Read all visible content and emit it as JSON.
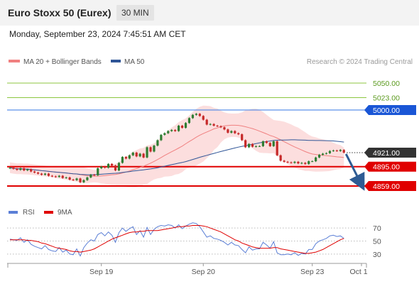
{
  "header": {
    "title": "Euro Stoxx 50 (Eurex)",
    "timeframe": "30 MIN"
  },
  "timestamp": "Monday, September 23, 2024 7:45:51 AM CET",
  "credit": "Research © 2024 Trading Central",
  "colors": {
    "ma20": "#f08080",
    "ma50": "#2f5597",
    "bollinger_fill": "#fbd3d3",
    "resistance": "#4a86e8",
    "support": "#e00000",
    "target_green": "#8cc63f",
    "arrow": "#2e5c94",
    "rsi": "#5b7fd6",
    "rsi_ma": "#e00000"
  },
  "chart_data": [
    {
      "type": "candlestick",
      "legend": [
        "MA 20 + Bollinger Bands",
        "MA 50"
      ],
      "ylim": [
        4838,
        5075
      ],
      "x_tick_labels": [
        "Sep 19",
        "Sep 20",
        "Sep 23",
        "Oct 1"
      ],
      "x_tick_bar_index": [
        26,
        55,
        86,
        100
      ],
      "levels": [
        {
          "label": "5050.00",
          "value": 5050,
          "style": "target"
        },
        {
          "label": "5023.00",
          "value": 5023,
          "style": "target"
        },
        {
          "label": "5000.00",
          "value": 5000,
          "style": "resistance"
        },
        {
          "label": "4921.00",
          "value": 4921,
          "style": "current"
        },
        {
          "label": "4895.00",
          "value": 4895,
          "style": "support"
        },
        {
          "label": "4859.00",
          "value": 4859,
          "style": "support"
        }
      ],
      "closes": [
        4893,
        4891,
        4889,
        4892,
        4888,
        4890,
        4886,
        4884,
        4882,
        4880,
        4882,
        4878,
        4877,
        4876,
        4878,
        4874,
        4875,
        4871,
        4870,
        4873,
        4866,
        4870,
        4875,
        4880,
        4879,
        4892,
        4895,
        4893,
        4900,
        4897,
        4888,
        4902,
        4913,
        4910,
        4916,
        4921,
        4914,
        4919,
        4912,
        4931,
        4923,
        4934,
        4944,
        4954,
        4957,
        4961,
        4963,
        4961,
        4971,
        4967,
        4976,
        4985,
        4991,
        4993,
        4989,
        4982,
        4973,
        4974,
        4971,
        4970,
        4968,
        4964,
        4958,
        4961,
        4957,
        4955,
        4944,
        4931,
        4937,
        4932,
        4933,
        4933,
        4942,
        4939,
        4933,
        4942,
        4916,
        4906,
        4904,
        4903,
        4902,
        4904,
        4901,
        4902,
        4900,
        4905,
        4905,
        4912,
        4917,
        4919,
        4920,
        4924,
        4925,
        4924,
        4926,
        4921
      ]
    },
    {
      "type": "line",
      "legend": [
        "RSI",
        "9MA"
      ],
      "ylim": [
        20,
        80
      ],
      "y_ticks": [
        70,
        50,
        30
      ],
      "series": [
        {
          "name": "RSI",
          "values": [
            53,
            52,
            51,
            55,
            48,
            52,
            45,
            42,
            40,
            38,
            43,
            37,
            35,
            34,
            40,
            33,
            36,
            30,
            29,
            38,
            27,
            40,
            47,
            52,
            50,
            60,
            63,
            58,
            64,
            59,
            48,
            63,
            70,
            65,
            69,
            72,
            60,
            66,
            56,
            71,
            60,
            68,
            72,
            74,
            73,
            75,
            74,
            70,
            75,
            69,
            73,
            76,
            78,
            77,
            72,
            64,
            56,
            58,
            54,
            53,
            51,
            48,
            44,
            48,
            44,
            43,
            37,
            32,
            41,
            36,
            38,
            38,
            48,
            44,
            39,
            49,
            32,
            29,
            29,
            30,
            29,
            32,
            28,
            31,
            30,
            37,
            37,
            46,
            50,
            52,
            54,
            58,
            59,
            57,
            58,
            54
          ]
        },
        {
          "name": "9MA",
          "values": [
            52,
            52,
            52,
            52,
            52,
            51,
            51,
            50,
            49,
            47,
            46,
            44,
            42,
            40,
            39,
            38,
            37,
            35,
            34,
            34,
            33,
            34,
            35,
            36,
            38,
            41,
            44,
            47,
            50,
            53,
            55,
            57,
            59,
            61,
            63,
            64,
            64,
            65,
            65,
            66,
            66,
            66,
            66,
            67,
            68,
            69,
            70,
            71,
            72,
            72,
            73,
            73,
            74,
            74,
            74,
            73,
            72,
            70,
            68,
            66,
            64,
            61,
            58,
            55,
            52,
            50,
            47,
            45,
            43,
            41,
            40,
            39,
            39,
            39,
            39,
            40,
            40,
            38,
            37,
            36,
            35,
            34,
            33,
            32,
            31,
            31,
            32,
            33,
            35,
            37,
            40,
            43,
            46,
            49,
            52,
            54
          ]
        }
      ]
    }
  ]
}
